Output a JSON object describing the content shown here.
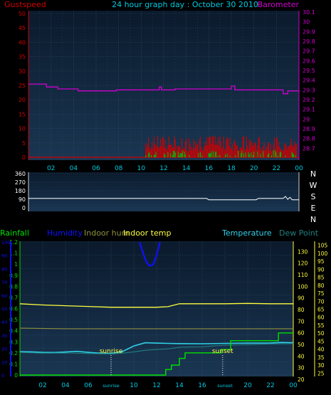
{
  "colors": {
    "gustspeed": "#d00000",
    "windspeed": "#00c000",
    "barometer": "#d000d0",
    "direction": "#ffffff",
    "rainfall": "#00e000",
    "humidity": "#1010ff",
    "indoor_hum": "#909040",
    "indoor_temp": "#ffff40",
    "temperature": "#30d0e8",
    "dew_point": "#208080",
    "time_axis": "#00c8e0",
    "title": "#00c8e0",
    "panel_top": "#0b1a2c",
    "panel_bottom": "#1a3652",
    "grid": "#3a5570"
  },
  "header": {
    "gust_label": "Gustspeed",
    "title": "24 hour graph day : October 30 2010",
    "baro_label": "Barometer"
  },
  "legend": {
    "rainfall": "Rainfall",
    "humidity": "Humidity",
    "indoor_hum": "Indoor hum",
    "indoor_temp": "Indoor temp",
    "temperature": "Temperature",
    "dew_point": "Dew Point"
  },
  "compass": [
    "N",
    "W",
    "S",
    "E",
    "N"
  ],
  "chart_data": [
    {
      "type": "line",
      "x_ticks": [
        "02",
        "04",
        "06",
        "08",
        "10",
        "12",
        "14",
        "16",
        "18",
        "20",
        "22",
        "00"
      ],
      "xlim": [
        0,
        24
      ],
      "left_axis": {
        "label": "Gustspeed",
        "ticks": [
          0,
          5,
          10,
          15,
          20,
          25,
          30,
          35,
          40,
          45,
          50
        ],
        "ylim": [
          0,
          50
        ]
      },
      "right_axis": {
        "label": "Barometer",
        "ticks": [
          28.7,
          28.8,
          28.9,
          29,
          29.1,
          29.2,
          29.3,
          29.4,
          29.5,
          29.6,
          29.7,
          29.8,
          29.9,
          30,
          30.1
        ],
        "ylim": [
          28.6,
          30.1
        ]
      },
      "series": [
        {
          "name": "Barometer",
          "axis": "right",
          "x": [
            0,
            1.6,
            1.6,
            2.6,
            2.6,
            4.4,
            4.4,
            7.8,
            7.8,
            11.6,
            11.6,
            11.8,
            11.8,
            13.0,
            13.0,
            18.0,
            18.0,
            18.3,
            18.3,
            22.6,
            22.6,
            23.0,
            23.0,
            24
          ],
          "y": [
            29.36,
            29.36,
            29.33,
            29.33,
            29.31,
            29.31,
            29.29,
            29.29,
            29.3,
            29.3,
            29.33,
            29.33,
            29.3,
            29.3,
            29.31,
            29.31,
            29.34,
            29.34,
            29.3,
            29.3,
            29.26,
            29.26,
            29.29,
            29.29
          ]
        }
      ]
    },
    {
      "type": "line",
      "x_ticks": [
        "02",
        "04",
        "06",
        "08",
        "10",
        "12",
        "14",
        "16",
        "18",
        "20",
        "22",
        "00"
      ],
      "xlim": [
        0,
        24
      ],
      "y_axis": {
        "ticks": [
          0,
          90,
          180,
          270,
          360
        ],
        "ylim": [
          0,
          360
        ]
      },
      "series": [
        {
          "name": "",
          "x": [
            0,
            15.8,
            16.0,
            20.2,
            20.4,
            22.6,
            22.8,
            23.0,
            23.2,
            23.4,
            24
          ],
          "y": [
            100,
            100,
            85,
            85,
            100,
            100,
            120,
            90,
            110,
            85,
            85
          ]
        }
      ]
    },
    {
      "type": "line",
      "x_ticks": [
        "02",
        "04",
        "06",
        "sunrise",
        "10",
        "12",
        "14",
        "16",
        "sunset",
        "20",
        "22",
        "00"
      ],
      "xlim": [
        0,
        24
      ],
      "annotations": [
        {
          "text": "sunrise",
          "x": 8.0
        },
        {
          "text": "sunset",
          "x": 17.8
        }
      ],
      "axis_rainfall": {
        "ticks": [
          0,
          0.1,
          0.2,
          0.3,
          0.4,
          0.5,
          0.6,
          0.7,
          0.8,
          0.9,
          1,
          1.1,
          1.2
        ],
        "ylim": [
          0,
          1.2
        ]
      },
      "axis_humidity": {
        "ticks": [
          0,
          10,
          20,
          30,
          40,
          50,
          60,
          70,
          80,
          90,
          100
        ],
        "ylim": [
          0,
          100
        ]
      },
      "axis_indoor": {
        "ticks": [
          20,
          30,
          40,
          50,
          60,
          70,
          80,
          90,
          100,
          110,
          120,
          130
        ],
        "ylim": [
          20,
          140
        ]
      },
      "axis_temp": {
        "ticks": [
          25,
          30,
          35,
          40,
          45,
          50,
          55,
          60,
          65,
          70,
          75,
          80,
          85,
          90,
          95,
          100,
          105
        ],
        "ylim": [
          22,
          108
        ]
      },
      "series": [
        {
          "name": "Humidity",
          "axis": "humidity",
          "x": [
            10.5,
            10.8,
            11.1,
            11.4,
            11.7,
            12.0,
            12.3
          ],
          "y": [
            100,
            92,
            85,
            82,
            83,
            90,
            100
          ]
        },
        {
          "name": "Indoor temp",
          "axis": "indoor",
          "x": [
            0,
            2,
            5,
            8,
            10.5,
            12,
            13.0,
            14,
            16,
            18,
            20,
            22,
            24
          ],
          "y": [
            85,
            84,
            83,
            82,
            82,
            82,
            82.5,
            85,
            85,
            85,
            85.3,
            85,
            85
          ]
        },
        {
          "name": "Indoor hum",
          "axis": "indoor",
          "x": [
            0,
            4,
            8,
            12,
            16,
            20,
            24
          ],
          "y": [
            64,
            63.5,
            63.5,
            63.5,
            63.5,
            63.5,
            63.5
          ]
        },
        {
          "name": "Temperature",
          "axis": "temp",
          "x": [
            0,
            1,
            2,
            3,
            4,
            5,
            6,
            7,
            8,
            9,
            10,
            11,
            12,
            13,
            14,
            16,
            18,
            20,
            22,
            23,
            24
          ],
          "y": [
            38.5,
            38.3,
            38,
            37.9,
            38.2,
            38.6,
            38,
            37.5,
            37.3,
            38.5,
            42,
            44,
            43.8,
            43.6,
            43.5,
            43.4,
            43.6,
            43.8,
            43.9,
            44.2,
            44
          ]
        },
        {
          "name": "Dew Point",
          "axis": "temp",
          "x": [
            0,
            2,
            4,
            6,
            8,
            9,
            10,
            11,
            12,
            13,
            14,
            16,
            18,
            20,
            22,
            24
          ],
          "y": [
            38,
            37.5,
            37.6,
            37.3,
            37,
            37.5,
            38.3,
            39.3,
            39.8,
            40.2,
            41.2,
            41.5,
            42.5,
            42.8,
            43.3,
            43.5
          ]
        },
        {
          "name": "Rainfall",
          "axis": "rainfall",
          "x": [
            0,
            12.8,
            12.8,
            13.3,
            13.3,
            14.0,
            14.0,
            14.5,
            14.5,
            17.7,
            17.7,
            18.5,
            18.5,
            22.7,
            22.7,
            24
          ],
          "y": [
            0,
            0,
            0.05,
            0.05,
            0.09,
            0.09,
            0.15,
            0.15,
            0.2,
            0.2,
            0.23,
            0.23,
            0.31,
            0.31,
            0.38,
            0.38
          ]
        }
      ]
    }
  ]
}
